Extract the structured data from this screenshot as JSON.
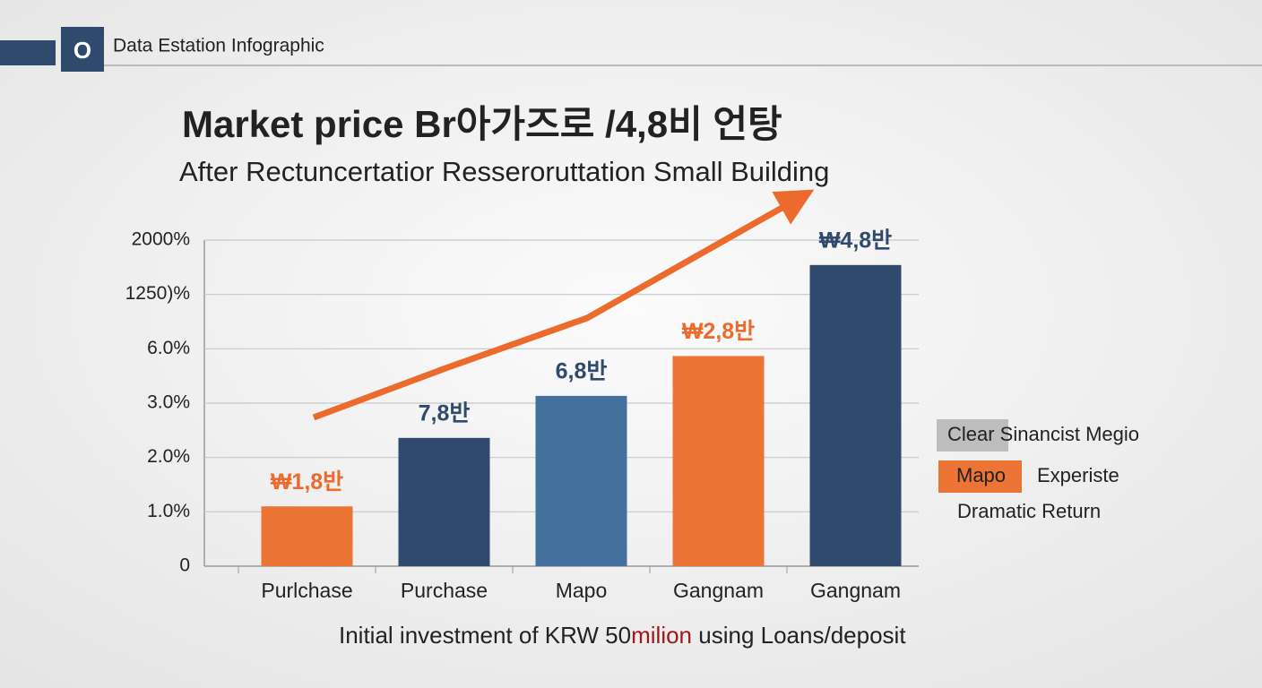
{
  "header": {
    "badge": "O",
    "title": "Data Estation Infographic"
  },
  "chart_data": {
    "type": "bar",
    "title": "Market price Br아가즈로 /4,8비 언탕",
    "subtitle": "After Rectuncertatior Resseroruttation Small Building",
    "categories": [
      "Purlchase",
      "Purchase",
      "Mapo",
      "Gangnam",
      "Gangnam"
    ],
    "values": [
      1.1,
      2.36,
      3.4,
      5.6,
      1656
    ],
    "colors": [
      "#ec7434",
      "#2f4a6d",
      "#44709e",
      "#ec7434",
      "#2f4a6d"
    ],
    "bar_annotations": [
      "₩1,8반",
      "7,8반",
      "6,8반",
      "₩2,8반",
      "₩4,8반"
    ],
    "ylim": [
      0,
      2000
    ],
    "yticks": [
      0,
      {
        "value": 1,
        "label": "1.0%"
      },
      {
        "value": 2,
        "label": "2.0%"
      },
      {
        "value": 3,
        "label": "3.0%"
      },
      {
        "value": 6,
        "label": "6.0%"
      },
      {
        "value": 1250,
        "label": "1250)%"
      },
      {
        "value": 2000,
        "label": "2000%"
      }
    ],
    "grid": true,
    "x_label": [
      "Initial investment of KRW 50",
      "milion",
      " using Loans/deposit"
    ],
    "legend": [
      {
        "swatch": "Clear Sinancist Megio",
        "color": "#bdbdbd"
      },
      {
        "swatch": "Mapo",
        "text": "Experiste",
        "color": "#ec7434"
      },
      {
        "text": "Dramatic Return"
      }
    ]
  }
}
